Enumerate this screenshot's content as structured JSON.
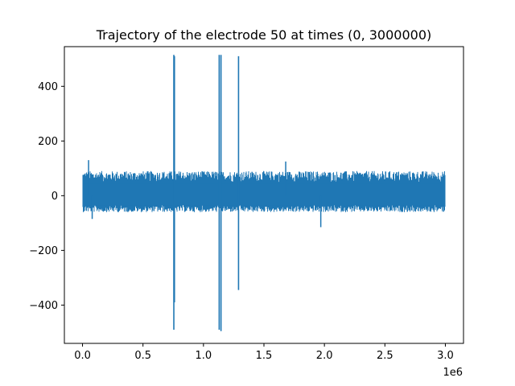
{
  "chart_data": {
    "type": "line",
    "title": "Trajectory of the electrode 50 at times (0, 3000000)",
    "xlabel": "",
    "ylabel": "",
    "x_offset_label": "1e6",
    "xlim": [
      -0.15,
      3.15
    ],
    "ylim": [
      -540,
      545
    ],
    "grid": false,
    "line_color": "#1f77b4",
    "x_ticks": [
      {
        "value": 0.0,
        "label": "0.0"
      },
      {
        "value": 0.5,
        "label": "0.5"
      },
      {
        "value": 1.0,
        "label": "1.0"
      },
      {
        "value": 1.5,
        "label": "1.5"
      },
      {
        "value": 2.0,
        "label": "2.0"
      },
      {
        "value": 2.5,
        "label": "2.5"
      },
      {
        "value": 3.0,
        "label": "3.0"
      }
    ],
    "y_ticks": [
      {
        "value": -400,
        "label": "−400"
      },
      {
        "value": -200,
        "label": "−200"
      },
      {
        "value": 0,
        "label": "0"
      },
      {
        "value": 200,
        "label": "200"
      },
      {
        "value": 400,
        "label": "400"
      }
    ],
    "noise_band": {
      "x_start": 0.0,
      "x_end": 3.0,
      "typical_min": -60,
      "typical_max": 90,
      "peaks": [
        {
          "x": 0.05,
          "y": 130
        },
        {
          "x": 0.08,
          "y": -85
        },
        {
          "x": 1.68,
          "y": 125
        },
        {
          "x": 1.97,
          "y": -115
        }
      ]
    },
    "spikes": [
      {
        "x": 0.755,
        "min": -490,
        "max": 515
      },
      {
        "x": 0.76,
        "min": -390,
        "max": 510
      },
      {
        "x": 1.13,
        "min": -490,
        "max": 515
      },
      {
        "x": 1.145,
        "min": -495,
        "max": 515
      },
      {
        "x": 1.29,
        "min": -345,
        "max": 510
      }
    ]
  }
}
